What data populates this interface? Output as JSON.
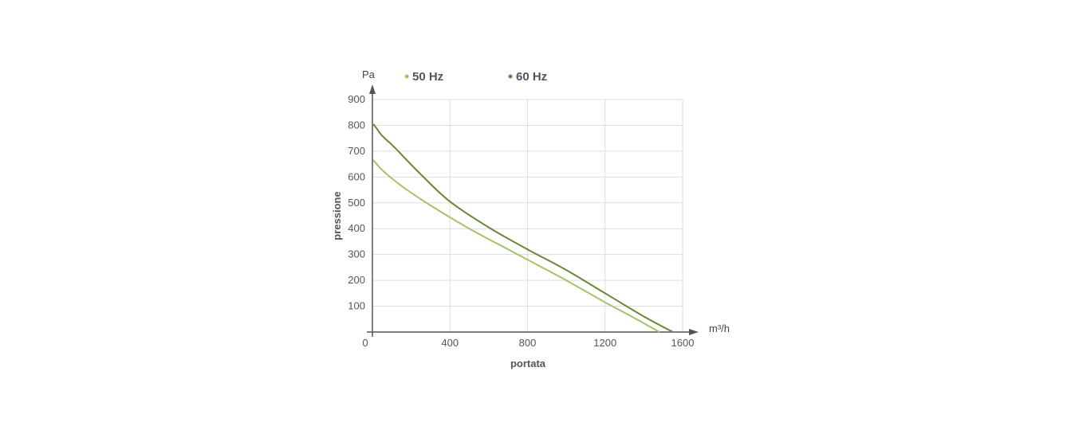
{
  "chart_data": {
    "type": "line",
    "title": "",
    "xlabel": "portata",
    "ylabel": "pressione",
    "x_unit": "m³/h",
    "y_unit": "Pa",
    "xlim": [
      0,
      1600
    ],
    "ylim": [
      0,
      900
    ],
    "x_ticks": [
      "0",
      "400",
      "800",
      "1200",
      "1600"
    ],
    "y_ticks": [
      "100",
      "200",
      "300",
      "400",
      "500",
      "600",
      "700",
      "800",
      "900"
    ],
    "grid": true,
    "legend_position": "top",
    "series": [
      {
        "name": "50 Hz",
        "color": "#a3c46a",
        "x": [
          5,
          60,
          160,
          300,
          500,
          700,
          850,
          1000,
          1200,
          1350,
          1480
        ],
        "y": [
          665,
          620,
          560,
          490,
          400,
          320,
          260,
          200,
          115,
          55,
          0
        ]
      },
      {
        "name": "60 Hz",
        "color": "#66883a",
        "x": [
          5,
          20,
          50,
          120,
          250,
          400,
          600,
          800,
          1000,
          1200,
          1400,
          1550
        ],
        "y": [
          805,
          790,
          760,
          710,
          610,
          505,
          405,
          320,
          240,
          150,
          60,
          0
        ]
      }
    ]
  }
}
